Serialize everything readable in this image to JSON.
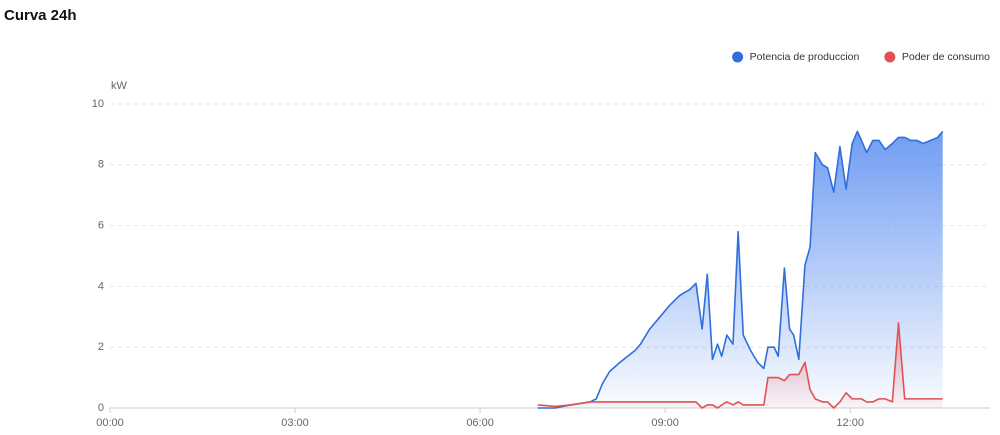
{
  "chart_data": {
    "type": "area-line",
    "title": "Curva 24h",
    "y_label": "kW",
    "x": [
      416,
      433,
      448,
      467,
      473,
      479,
      486,
      496,
      511,
      516,
      525,
      535,
      545,
      554,
      564,
      570,
      576,
      581,
      586,
      591,
      595,
      600,
      606,
      611,
      616,
      623,
      630,
      636,
      640,
      646,
      650,
      656,
      661,
      665,
      670,
      676,
      681,
      686,
      693,
      698,
      704,
      710,
      716,
      722,
      727,
      731,
      736,
      742,
      748,
      754,
      761,
      767,
      773,
      779,
      785,
      791,
      798,
      805,
      810
    ],
    "series": [
      {
        "name": "Potencia de produccion",
        "color": "#2f6fdc",
        "values": [
          0,
          0,
          0.1,
          0.2,
          0.3,
          0.8,
          1.2,
          1.5,
          1.9,
          2.1,
          2.6,
          3.0,
          3.4,
          3.7,
          3.9,
          4.1,
          2.6,
          4.4,
          1.6,
          2.1,
          1.7,
          2.4,
          2.1,
          5.8,
          2.4,
          1.9,
          1.5,
          1.3,
          2.0,
          2.0,
          1.7,
          4.6,
          2.6,
          2.4,
          1.6,
          4.7,
          5.3,
          8.4,
          8.0,
          7.9,
          7.1,
          8.6,
          7.2,
          8.7,
          9.1,
          8.8,
          8.4,
          8.8,
          8.8,
          8.5,
          8.7,
          8.9,
          8.9,
          8.8,
          8.8,
          8.7,
          8.8,
          8.9,
          9.1
        ]
      },
      {
        "name": "Poder de consumo",
        "color": "#e05252",
        "values": [
          0.1,
          0.05,
          0.1,
          0.2,
          0.2,
          0.2,
          0.2,
          0.2,
          0.2,
          0.2,
          0.2,
          0.2,
          0.2,
          0.2,
          0.2,
          0.2,
          0.0,
          0.1,
          0.1,
          0.0,
          0.1,
          0.2,
          0.1,
          0.2,
          0.1,
          0.1,
          0.1,
          0.1,
          1.0,
          1.0,
          1.0,
          0.9,
          1.1,
          1.1,
          1.1,
          1.5,
          0.6,
          0.3,
          0.2,
          0.2,
          0.0,
          0.2,
          0.5,
          0.3,
          0.3,
          0.3,
          0.2,
          0.2,
          0.3,
          0.3,
          0.2,
          2.8,
          0.3,
          0.3,
          0.3,
          0.3,
          0.3,
          0.3,
          0.3
        ]
      }
    ],
    "xlim": [
      0,
      856
    ],
    "xticks": [
      {
        "value": 0,
        "label": "00:00"
      },
      {
        "value": 180,
        "label": "03:00"
      },
      {
        "value": 360,
        "label": "06:00"
      },
      {
        "value": 540,
        "label": "09:00"
      },
      {
        "value": 720,
        "label": "12:00"
      }
    ],
    "ylim": [
      0,
      10
    ],
    "yticks": [
      0,
      2,
      4,
      6,
      8,
      10
    ],
    "grid": true,
    "legend": "top-right"
  }
}
